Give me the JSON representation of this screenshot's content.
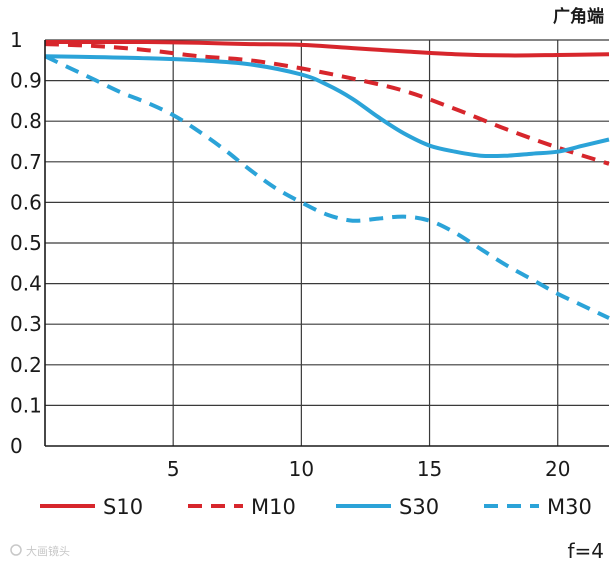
{
  "chart_data": {
    "type": "line",
    "title": "广角端",
    "xlabel": "",
    "ylabel": "",
    "xlim": [
      0,
      22
    ],
    "ylim": [
      0,
      1
    ],
    "x_ticks": [
      5,
      10,
      15,
      20
    ],
    "y_ticks": [
      0,
      0.1,
      0.2,
      0.3,
      0.4,
      0.5,
      0.6,
      0.7,
      0.8,
      0.9,
      1
    ],
    "y_tick_labels": [
      "0",
      "0.1",
      "0.2",
      "0.3",
      "0.4",
      "0.5",
      "0.6",
      "0.7",
      "0.8",
      "0.9",
      "1"
    ],
    "x_tick_labels": [
      "5",
      "10",
      "15",
      "20"
    ],
    "grid": true,
    "legend_position": "bottom",
    "series": [
      {
        "name": "S10",
        "color": "#d7262c",
        "dash": "solid",
        "x": [
          0,
          2,
          4,
          6,
          8,
          10,
          12,
          14,
          16,
          18,
          20,
          22
        ],
        "y": [
          0.995,
          0.995,
          0.995,
          0.993,
          0.99,
          0.988,
          0.98,
          0.972,
          0.965,
          0.962,
          0.963,
          0.965
        ]
      },
      {
        "name": "M10",
        "color": "#d7262c",
        "dash": "dashed",
        "x": [
          0,
          2,
          4,
          6,
          8,
          10,
          12,
          14,
          16,
          18,
          20,
          22
        ],
        "y": [
          0.99,
          0.985,
          0.975,
          0.96,
          0.95,
          0.93,
          0.905,
          0.875,
          0.83,
          0.78,
          0.735,
          0.695
        ]
      },
      {
        "name": "S30",
        "color": "#2ba3d8",
        "dash": "solid",
        "x": [
          0,
          2,
          4,
          6,
          8,
          10,
          11,
          12,
          13,
          14,
          15,
          16,
          17,
          18,
          19,
          20,
          21,
          22
        ],
        "y": [
          0.96,
          0.958,
          0.955,
          0.95,
          0.94,
          0.915,
          0.89,
          0.855,
          0.81,
          0.77,
          0.74,
          0.725,
          0.715,
          0.715,
          0.72,
          0.725,
          0.74,
          0.755
        ]
      },
      {
        "name": "M30",
        "color": "#2ba3d8",
        "dash": "dashed",
        "x": [
          0,
          1,
          2,
          3,
          4,
          5,
          6,
          7,
          8,
          9,
          10,
          11,
          12,
          13,
          14,
          15,
          16,
          17,
          18,
          19,
          20,
          21,
          22
        ],
        "y": [
          0.96,
          0.93,
          0.9,
          0.87,
          0.845,
          0.815,
          0.775,
          0.73,
          0.68,
          0.635,
          0.6,
          0.57,
          0.555,
          0.56,
          0.565,
          0.555,
          0.525,
          0.485,
          0.445,
          0.41,
          0.375,
          0.345,
          0.315
        ]
      }
    ],
    "annotations": [
      "f=4"
    ]
  },
  "watermark": "大画镜头"
}
